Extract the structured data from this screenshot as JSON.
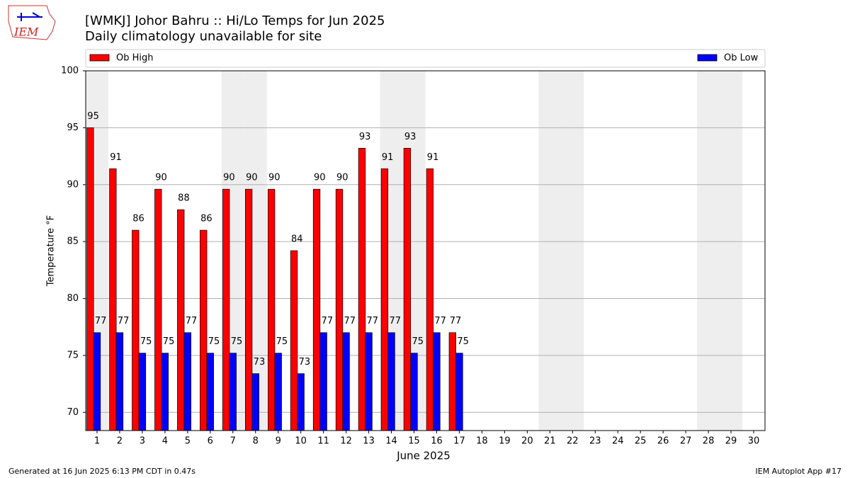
{
  "logo": "IEM",
  "footer": {
    "left": "Generated at 16 Jun 2025 6:13 PM CDT in 0.47s",
    "right": "IEM Autoplot App #17"
  },
  "chart_data": {
    "type": "bar",
    "title": "[WMKJ] Johor Bahru :: Hi/Lo Temps for Jun 2025",
    "subtitle": "Daily climatology unavailable for site",
    "xlabel": "June 2025",
    "ylabel": "Temperature °F",
    "categories": [
      "1",
      "2",
      "3",
      "4",
      "5",
      "6",
      "7",
      "8",
      "9",
      "10",
      "11",
      "12",
      "13",
      "14",
      "15",
      "16",
      "17",
      "18",
      "19",
      "20",
      "21",
      "22",
      "23",
      "24",
      "25",
      "26",
      "27",
      "28",
      "29",
      "30"
    ],
    "series": [
      {
        "name": "Ob High",
        "color": "#ff0000",
        "values": [
          95.0,
          91.4,
          86.0,
          89.6,
          87.8,
          86.0,
          89.6,
          89.6,
          89.6,
          84.2,
          89.6,
          89.6,
          93.2,
          91.4,
          93.2,
          91.4,
          77.0,
          null,
          null,
          null,
          null,
          null,
          null,
          null,
          null,
          null,
          null,
          null,
          null,
          null
        ],
        "value_labels": [
          "95",
          "91",
          "86",
          "90",
          "88",
          "86",
          "90",
          "90",
          "90",
          "84",
          "90",
          "90",
          "93",
          "91",
          "93",
          "91",
          "77",
          null,
          null,
          null,
          null,
          null,
          null,
          null,
          null,
          null,
          null,
          null,
          null,
          null
        ]
      },
      {
        "name": "Ob Low",
        "color": "#0000ff",
        "values": [
          77.0,
          77.0,
          75.2,
          75.2,
          77.0,
          75.2,
          75.2,
          73.4,
          75.2,
          73.4,
          77.0,
          77.0,
          77.0,
          77.0,
          75.2,
          77.0,
          75.2,
          null,
          null,
          null,
          null,
          null,
          null,
          null,
          null,
          null,
          null,
          null,
          null,
          null
        ],
        "value_labels": [
          "77",
          "77",
          "75",
          "75",
          "77",
          "75",
          "75",
          "73",
          "75",
          "73",
          "77",
          "77",
          "77",
          "77",
          "75",
          "77",
          "75",
          null,
          null,
          null,
          null,
          null,
          null,
          null,
          null,
          null,
          null,
          null,
          null,
          null
        ]
      }
    ],
    "ylim": [
      68.4,
      100
    ],
    "yticks": [
      70,
      75,
      80,
      85,
      90,
      95,
      100
    ],
    "grid": true
  }
}
